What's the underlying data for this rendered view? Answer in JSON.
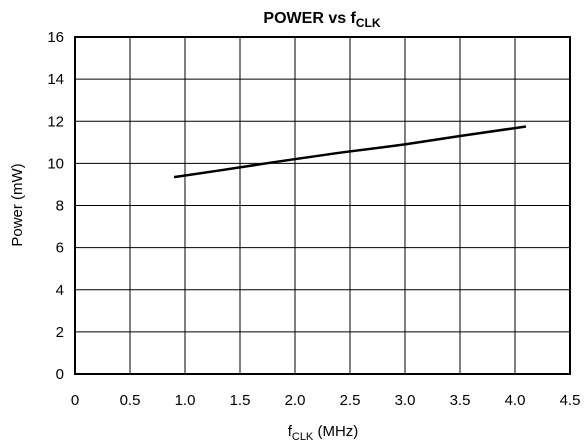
{
  "chart_data": {
    "type": "line",
    "title": {
      "main": "POWER vs f",
      "subscript": "CLK"
    },
    "xlabel": {
      "main": "f",
      "subscript": "CLK",
      "suffix": " (MHz)"
    },
    "ylabel": "Power (mW)",
    "xlim": [
      0,
      4.5
    ],
    "ylim": [
      0,
      16
    ],
    "xticks": [
      0,
      0.5,
      1.0,
      1.5,
      2.0,
      2.5,
      3.0,
      3.5,
      4.0,
      4.5
    ],
    "xtick_labels": [
      "0",
      "0.5",
      "1.0",
      "1.5",
      "2.0",
      "2.5",
      "3.0",
      "3.5",
      "4.0",
      "4.5"
    ],
    "yticks": [
      0,
      2,
      4,
      6,
      8,
      10,
      12,
      14,
      16
    ],
    "ytick_labels": [
      "0",
      "2",
      "4",
      "6",
      "8",
      "10",
      "12",
      "14",
      "16"
    ],
    "grid": true,
    "series": [
      {
        "x": [
          0.9,
          1.3,
          1.8,
          2.4,
          3.0,
          3.5,
          4.1
        ],
        "y": [
          9.35,
          9.65,
          10.05,
          10.5,
          10.9,
          11.3,
          11.75
        ],
        "color": "#000000"
      }
    ]
  }
}
